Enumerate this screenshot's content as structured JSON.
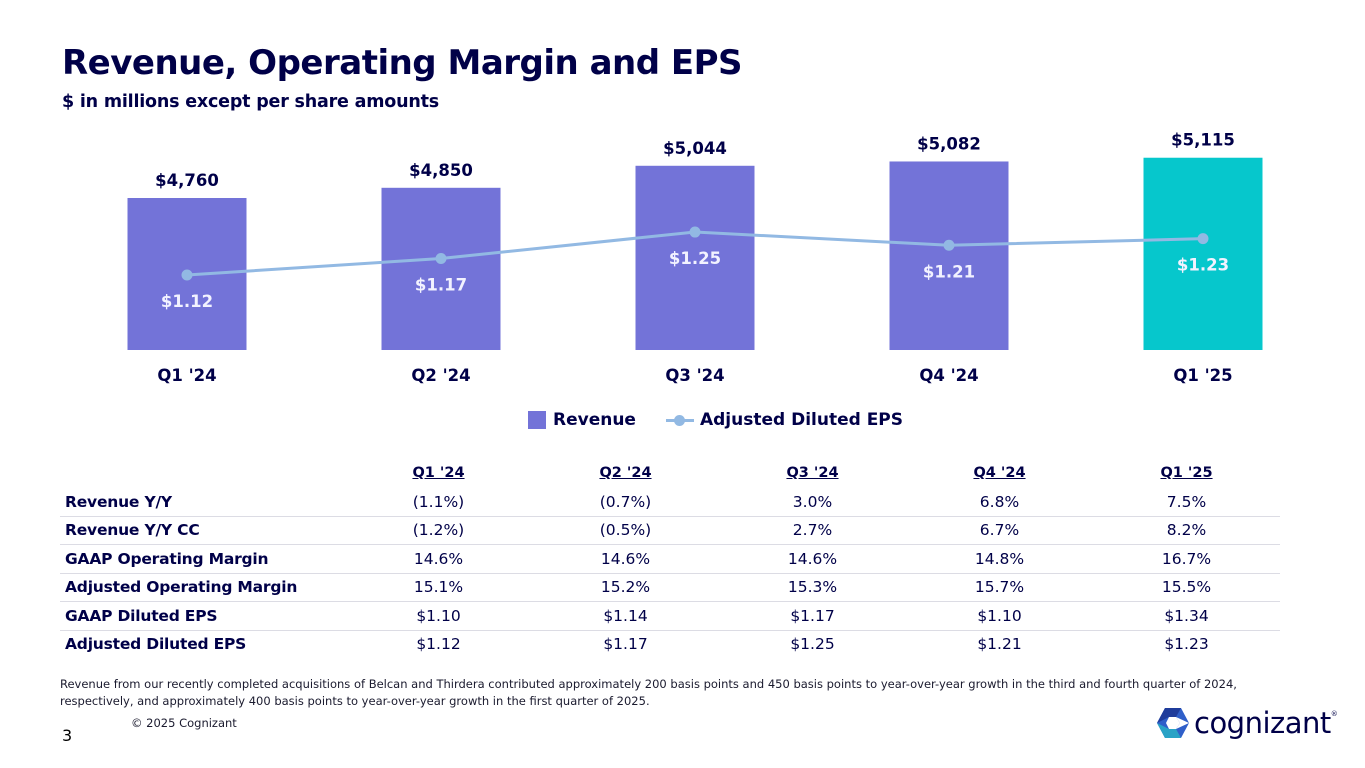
{
  "header": {
    "title": "Revenue, Operating Margin and EPS",
    "subtitle": "$ in millions except per share amounts"
  },
  "colors": {
    "revenue_bar": "#7373d8",
    "revenue_bar_current": "#06c7cc",
    "eps_line": "#92b9e3",
    "text_dark": "#000048"
  },
  "chart_data": {
    "type": "bar",
    "title": "Revenue, Operating Margin and EPS",
    "subtitle": "$ in millions except per share amounts",
    "xlabel": "",
    "ylabel": "",
    "grid": false,
    "legend_position": "bottom-center",
    "categories": [
      "Q1 '24",
      "Q2 '24",
      "Q3 '24",
      "Q4 '24",
      "Q1 '25"
    ],
    "series": [
      {
        "name": "Revenue",
        "type": "bar",
        "values": [
          4760,
          4850,
          5044,
          5082,
          5115
        ],
        "labels": [
          "$4,760",
          "$4,850",
          "$5,044",
          "$5,082",
          "$5,115"
        ],
        "highlight_index": 4
      },
      {
        "name": "Adjusted Diluted EPS",
        "type": "line",
        "values": [
          1.12,
          1.17,
          1.25,
          1.21,
          1.23
        ],
        "labels": [
          "$1.12",
          "$1.17",
          "$1.25",
          "$1.21",
          "$1.23"
        ]
      }
    ],
    "revenue_ylim": [
      3420,
      5300
    ],
    "eps_ylim": [
      0.893,
      1.35
    ]
  },
  "legend": {
    "revenue": "Revenue",
    "eps": "Adjusted Diluted EPS"
  },
  "table": {
    "columns": [
      "Q1 '24",
      "Q2 '24",
      "Q3 '24",
      "Q4 '24",
      "Q1 '25"
    ],
    "rows": [
      {
        "label": "Revenue Y/Y",
        "values": [
          "(1.1%)",
          "(0.7%)",
          "3.0%",
          "6.8%",
          "7.5%"
        ]
      },
      {
        "label": "Revenue Y/Y CC",
        "values": [
          "(1.2%)",
          "(0.5%)",
          "2.7%",
          "6.7%",
          "8.2%"
        ]
      },
      {
        "label": "GAAP Operating Margin",
        "values": [
          "14.6%",
          "14.6%",
          "14.6%",
          "14.8%",
          "16.7%"
        ]
      },
      {
        "label": "Adjusted Operating Margin",
        "values": [
          "15.1%",
          "15.2%",
          "15.3%",
          "15.7%",
          "15.5%"
        ]
      },
      {
        "label": "GAAP Diluted EPS",
        "values": [
          "$1.10",
          "$1.14",
          "$1.17",
          "$1.10",
          "$1.34"
        ]
      },
      {
        "label": "Adjusted Diluted EPS",
        "values": [
          "$1.12",
          "$1.17",
          "$1.25",
          "$1.21",
          "$1.23"
        ]
      }
    ]
  },
  "footer": {
    "note": "Revenue from our recently completed acquisitions of Belcan and Thirdera contributed approximately 200 basis points and 450 basis points to year-over-year growth in the third and fourth quarter of 2024, respectively, and approximately 400 basis points to year-over-year growth in the first quarter of 2025.",
    "copyright": "© 2025 Cognizant",
    "page_number": "3",
    "logo_text": "cognizant",
    "logo_icon": "cognizant-hexagon-logo-icon"
  }
}
